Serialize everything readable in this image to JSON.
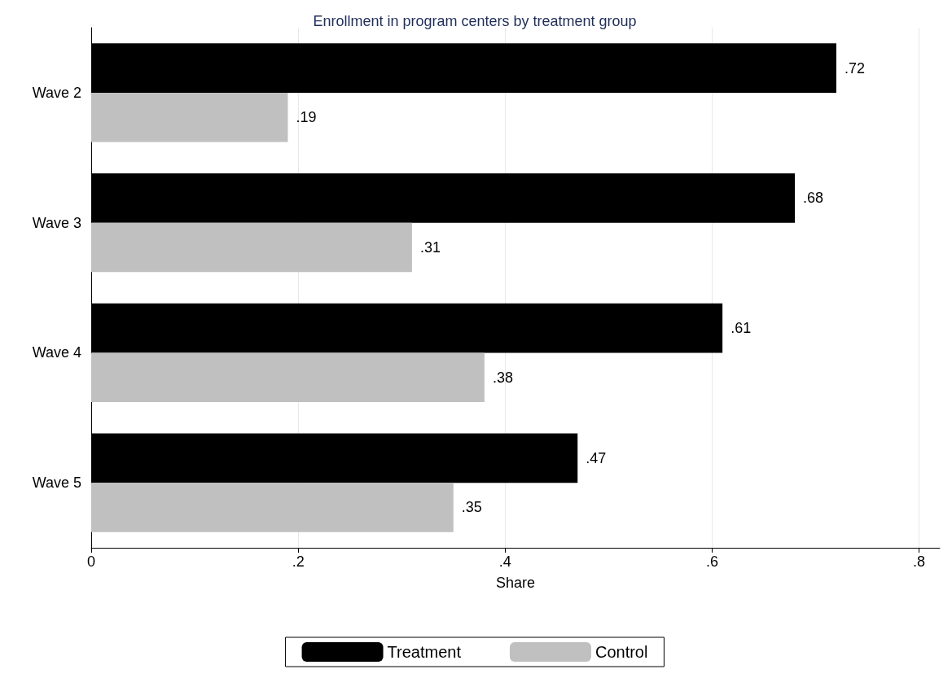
{
  "chart_data": {
    "type": "bar",
    "orientation": "horizontal",
    "title": "Enrollment in program centers by treatment group",
    "xlabel": "Share",
    "categories": [
      "Wave 2",
      "Wave 3",
      "Wave 4",
      "Wave 5"
    ],
    "series": [
      {
        "name": "Treatment",
        "color": "#000000",
        "values": [
          0.72,
          0.68,
          0.61,
          0.47
        ],
        "value_labels": [
          ".72",
          ".68",
          ".61",
          ".47"
        ]
      },
      {
        "name": "Control",
        "color": "#c0c0c0",
        "values": [
          0.19,
          0.31,
          0.38,
          0.35
        ],
        "value_labels": [
          ".19",
          ".31",
          ".38",
          ".35"
        ]
      }
    ],
    "xlim": [
      0,
      0.82
    ],
    "xticks": [
      0,
      {
        "value": 0.2,
        "label": ".2"
      },
      {
        "value": 0.4,
        "label": ".4"
      },
      {
        "value": 0.6,
        "label": ".6"
      },
      {
        "value": 0.8,
        "label": ".8"
      }
    ],
    "grid": "x",
    "legend": "bottom"
  }
}
